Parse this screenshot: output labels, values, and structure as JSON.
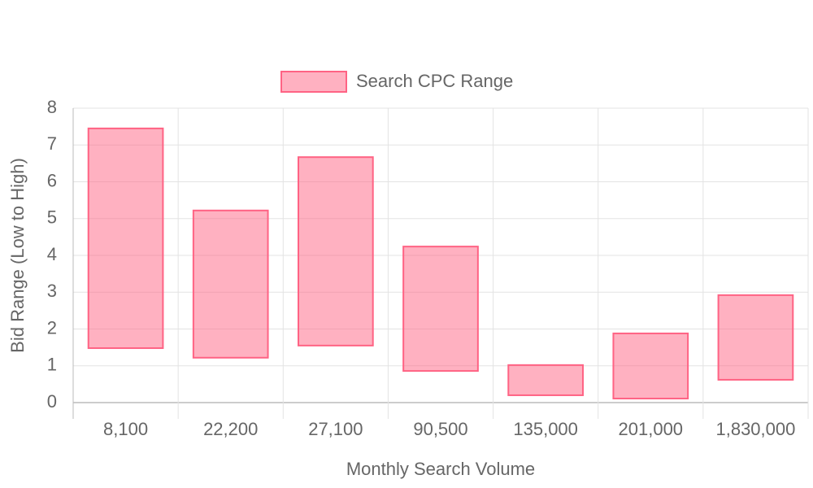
{
  "chart_data": {
    "type": "floating-bar",
    "categories": [
      "8,100",
      "22,200",
      "27,100",
      "90,500",
      "135,000",
      "201,000",
      "1,830,000"
    ],
    "series": [
      {
        "name": "Search CPC Range",
        "color": "#ff6384",
        "values": [
          [
            1.48,
            7.45
          ],
          [
            1.22,
            5.22
          ],
          [
            1.55,
            6.67
          ],
          [
            0.86,
            4.24
          ],
          [
            0.2,
            1.02
          ],
          [
            0.11,
            1.88
          ],
          [
            0.62,
            2.92
          ]
        ]
      }
    ],
    "x_label": "Monthly Search Volume",
    "y_label": "Bid Range (Low to High)",
    "ylim": [
      0,
      8
    ],
    "yticks": [
      0,
      1,
      2,
      3,
      4,
      5,
      6,
      7,
      8
    ],
    "grid": true,
    "legend": "top"
  }
}
